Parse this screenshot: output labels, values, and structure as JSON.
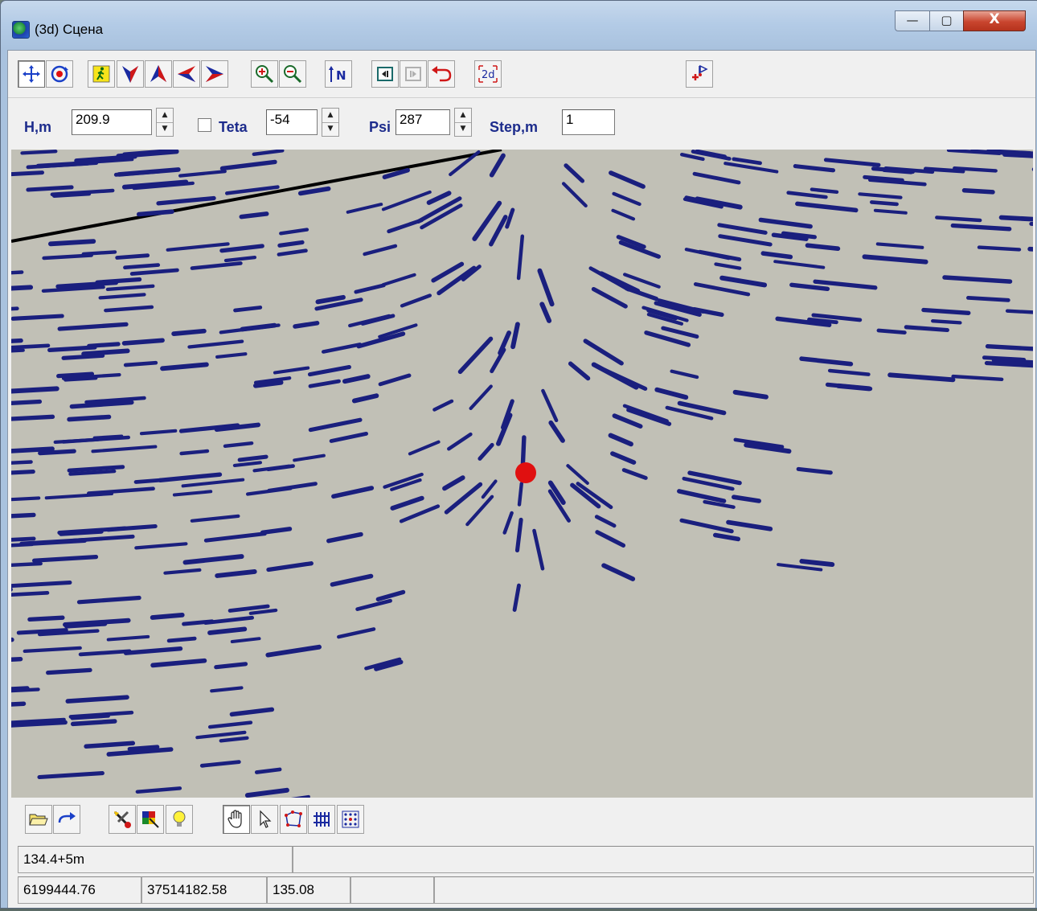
{
  "window": {
    "title": "(3d) Сцена",
    "controls": {
      "minimize": "—",
      "maximize": "▢",
      "close": "X"
    }
  },
  "toolbar_top": {
    "buttons": [
      {
        "name": "move-tool-button",
        "icon": "move-arrows-icon",
        "pressed": true
      },
      {
        "name": "rotate-target-button",
        "icon": "target-rotate-icon",
        "pressed": false
      },
      {
        "name": "walk-mode-button",
        "icon": "walking-man-icon",
        "pressed": false
      },
      {
        "name": "look-down-button",
        "icon": "arrow-down-icon",
        "pressed": false
      },
      {
        "name": "look-up-button",
        "icon": "arrow-up-icon",
        "pressed": false
      },
      {
        "name": "turn-left-button",
        "icon": "arrow-left-icon",
        "pressed": false
      },
      {
        "name": "turn-right-button",
        "icon": "arrow-right-icon",
        "pressed": false
      },
      {
        "name": "zoom-in-button",
        "icon": "zoom-in-icon",
        "pressed": false
      },
      {
        "name": "zoom-out-button",
        "icon": "zoom-out-icon",
        "pressed": false
      },
      {
        "name": "north-button",
        "icon": "north-arrow-icon",
        "label": "N",
        "pressed": false
      },
      {
        "name": "step-back-button",
        "icon": "frame-back-icon",
        "pressed": false
      },
      {
        "name": "step-forward-button",
        "icon": "frame-forward-icon",
        "pressed": false
      },
      {
        "name": "undo-button",
        "icon": "undo-arrow-icon",
        "pressed": false
      },
      {
        "name": "switch-2d-button",
        "icon": "2d-icon",
        "label": "2d",
        "pressed": false
      },
      {
        "name": "add-marker-button",
        "icon": "flag-plus-icon",
        "pressed": false
      }
    ]
  },
  "params": {
    "h_label": "H,m",
    "h_value": "209.9",
    "teta_label": "Teta",
    "teta_value": "-54",
    "teta_checked": false,
    "psi_label": "Psi",
    "psi_value": "287",
    "step_label": "Step,m",
    "step_value": "1"
  },
  "scene": {
    "background": "#c1c0b6",
    "post_color": "#1a1f7e",
    "marker_color": "#e01010",
    "line_color": "#000000"
  },
  "toolbar_bottom": {
    "buttons": [
      {
        "name": "open-folder-button",
        "icon": "folder-open-icon",
        "pressed": false
      },
      {
        "name": "redo-button",
        "icon": "redo-arrow-icon",
        "pressed": false
      },
      {
        "name": "tools-button",
        "icon": "tools-icon",
        "pressed": false
      },
      {
        "name": "palette-button",
        "icon": "palette-icon",
        "pressed": false
      },
      {
        "name": "light-button",
        "icon": "lightbulb-icon",
        "pressed": false
      },
      {
        "name": "hand-pan-button",
        "icon": "hand-icon",
        "pressed": true
      },
      {
        "name": "select-pointer-button",
        "icon": "pointer-arrow-icon",
        "pressed": false
      },
      {
        "name": "polygon-button",
        "icon": "polygon-icon",
        "pressed": false
      },
      {
        "name": "grid-button",
        "icon": "grid-icon",
        "pressed": false
      },
      {
        "name": "points-grid-button",
        "icon": "dots-grid-icon",
        "pressed": false
      }
    ]
  },
  "statusbar": {
    "row1": [
      "134.4+5m",
      ""
    ],
    "row2": [
      "6199444.76",
      "37514182.58",
      "135.08",
      "",
      ""
    ]
  }
}
